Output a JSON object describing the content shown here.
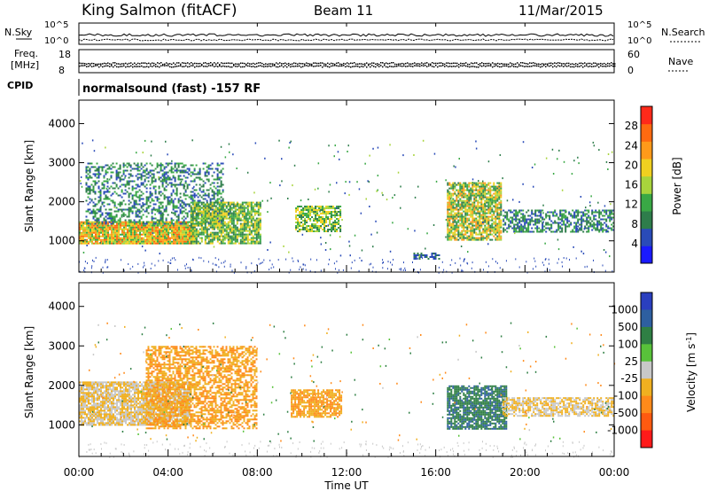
{
  "header": {
    "station": "King Salmon (fitACF)",
    "beam": "Beam 11",
    "date": "11/Mar/2015"
  },
  "status_panels": {
    "nsky_label": "N.Sky",
    "nsearch_label": "N.Search",
    "freq_label_1": "Freq.",
    "freq_label_2": "[MHz]",
    "nave_label": "Nave",
    "cpid_label": "CPID",
    "cpid_text": "normalsound (fast) -157 RF",
    "noise_ticks_top": "10^5",
    "noise_ticks_bottom": "10^0",
    "freq_ticks": [
      "18",
      "8"
    ],
    "nave_ticks": [
      "60",
      "0"
    ]
  },
  "colors": {
    "power_scale": [
      "#1a1aff",
      "#2a4bb8",
      "#2e7d4b",
      "#39a845",
      "#a8d43c",
      "#f0d020",
      "#ff9a1a",
      "#ff6a10",
      "#ff2a1a"
    ],
    "velocity_scale": [
      "#2a3fbf",
      "#2e5fa0",
      "#2f7f44",
      "#58c23a",
      "#c8c8c8",
      "#f0b020",
      "#ff8a1a",
      "#ff5a10",
      "#ff1a1a"
    ]
  },
  "chart_data": [
    {
      "type": "heatmap",
      "quantity": "power",
      "ylabel": "Slant Range [km]",
      "xlabel": "Time UT",
      "x_ticks": [
        "00:00",
        "04:00",
        "08:00",
        "12:00",
        "16:00",
        "20:00",
        "00:00"
      ],
      "x_range_hours": [
        0,
        24
      ],
      "y_ticks": [
        "1000",
        "2000",
        "3000",
        "4000"
      ],
      "y_range_km": [
        200,
        4600
      ],
      "colorbar_label": "Power [dB]",
      "colorbar_ticks": [
        "4",
        "8",
        "12",
        "16",
        "20",
        "24",
        "28"
      ],
      "colorbar_range": [
        0,
        32
      ],
      "scatter_regions": [
        {
          "t0": 0.0,
          "t1": 5.2,
          "r0": 900,
          "r1": 1500,
          "levels": [
            12,
            16,
            20,
            24,
            28
          ],
          "density": 0.95
        },
        {
          "t0": 0.3,
          "t1": 6.5,
          "r0": 1400,
          "r1": 3000,
          "levels": [
            4,
            8,
            12
          ],
          "density": 0.4
        },
        {
          "t0": 5.0,
          "t1": 8.2,
          "r0": 900,
          "r1": 2000,
          "levels": [
            8,
            12,
            16,
            20
          ],
          "density": 0.8
        },
        {
          "t0": 9.7,
          "t1": 11.8,
          "r0": 1200,
          "r1": 1900,
          "levels": [
            8,
            12,
            16,
            20
          ],
          "density": 0.75
        },
        {
          "t0": 16.5,
          "t1": 19.0,
          "r0": 1000,
          "r1": 2500,
          "levels": [
            8,
            12,
            16,
            20,
            24
          ],
          "density": 0.8
        },
        {
          "t0": 19.0,
          "t1": 24.0,
          "r0": 1200,
          "r1": 1800,
          "levels": [
            4,
            8,
            12
          ],
          "density": 0.55
        },
        {
          "t0": 15.0,
          "t1": 16.2,
          "r0": 500,
          "r1": 700,
          "levels": [
            4,
            8
          ],
          "density": 0.5
        }
      ]
    },
    {
      "type": "heatmap",
      "quantity": "velocity",
      "ylabel": "Slant Range [km]",
      "xlabel": "Time UT",
      "x_ticks": [
        "00:00",
        "04:00",
        "08:00",
        "12:00",
        "16:00",
        "20:00",
        "00:00"
      ],
      "x_range_hours": [
        0,
        24
      ],
      "y_ticks": [
        "1000",
        "2000",
        "3000",
        "4000"
      ],
      "y_range_km": [
        200,
        4600
      ],
      "colorbar_label": "Velocity [m s^-1]",
      "colorbar_ticks": [
        "1000",
        "500",
        "100",
        "25",
        "-25",
        "-100",
        "-500",
        "-1000"
      ],
      "scatter_regions": [
        {
          "t0": 0.0,
          "t1": 5.0,
          "r0": 1000,
          "r1": 2100,
          "levels": [
            0,
            -50
          ],
          "density": 0.85
        },
        {
          "t0": 3.0,
          "t1": 8.0,
          "r0": 900,
          "r1": 3000,
          "levels": [
            -100,
            -300
          ],
          "density": 0.6
        },
        {
          "t0": 9.5,
          "t1": 11.8,
          "r0": 1200,
          "r1": 1900,
          "levels": [
            -100,
            -300
          ],
          "density": 0.75
        },
        {
          "t0": 16.5,
          "t1": 19.2,
          "r0": 900,
          "r1": 2000,
          "levels": [
            300,
            100,
            700
          ],
          "density": 0.8
        },
        {
          "t0": 19.0,
          "t1": 24.0,
          "r0": 1200,
          "r1": 1700,
          "levels": [
            0,
            -50
          ],
          "density": 0.7
        }
      ]
    }
  ]
}
